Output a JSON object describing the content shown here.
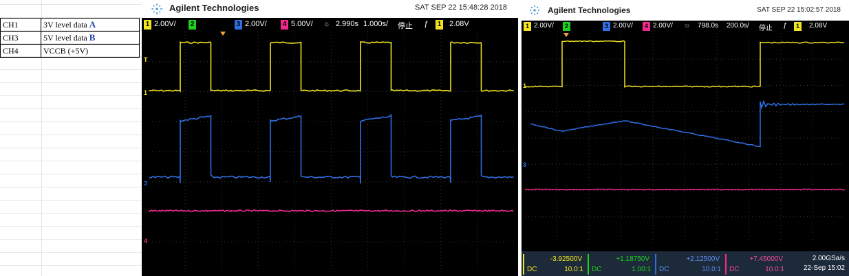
{
  "legend": {
    "rows": [
      {
        "ch": "CH1",
        "desc": "3V level data",
        "mark": "A"
      },
      {
        "ch": "CH3",
        "desc": "5V level data",
        "mark": "B"
      },
      {
        "ch": "CH4",
        "desc": "VCCB (+5V)",
        "mark": ""
      }
    ]
  },
  "colors": {
    "ch1": "#f2e51e",
    "ch2": "#1fd11f",
    "ch3": "#2f6fe6",
    "ch4": "#f22a8c",
    "accent": "#1f3fae"
  },
  "scope_a": {
    "brand": "Agilent Technologies",
    "datetime": "SAT SEP 22 15:48:28 2018",
    "status": {
      "ch1_num": "1",
      "ch1_scale": "2.00V/",
      "ch2_num": "2",
      "ch3_num": "3",
      "ch3_scale": "2.00V/",
      "ch4_num": "4",
      "ch4_scale": "5.00V/",
      "trigger_icon": "trigger-delay-icon",
      "delay": "2.990s",
      "timebase": "1.000s/",
      "run_state": "停止",
      "trig_edge": "ƒ",
      "trig_src": "1",
      "trig_level": "2.08V"
    }
  },
  "scope_b": {
    "brand": "Agilent Technologies",
    "datetime": "SAT SEP 22 15:02:57 2018",
    "status": {
      "ch1_num": "1",
      "ch1_scale": "2.00V/",
      "ch2_num": "2",
      "ch3_num": "3",
      "ch3_scale": "2.00V/",
      "ch4_num": "4",
      "ch4_scale": "2.00V/",
      "trigger_icon": "trigger-delay-icon",
      "delay": "798.0s",
      "timebase": "200.0s/",
      "run_state": "停止",
      "trig_edge": "ƒ",
      "trig_src": "1",
      "trig_level": "2.08V"
    },
    "readouts": [
      {
        "value": "-3.92500V",
        "coupling": "DC",
        "probe": "10.0:1",
        "color": "#f2e51e"
      },
      {
        "value": "+1.18750V",
        "coupling": "DC",
        "probe": "1.00:1",
        "color": "#1fd11f"
      },
      {
        "value": "+2.12500V",
        "coupling": "DC",
        "probe": "10.0:1",
        "color": "#2f6fe6"
      },
      {
        "value": "+7.45000V",
        "coupling": "DC",
        "probe": "10.0:1",
        "color": "#f22a8c"
      }
    ],
    "sample_rate": "2.00GSa/s",
    "capture_date": "22-Sep 15:02"
  }
}
